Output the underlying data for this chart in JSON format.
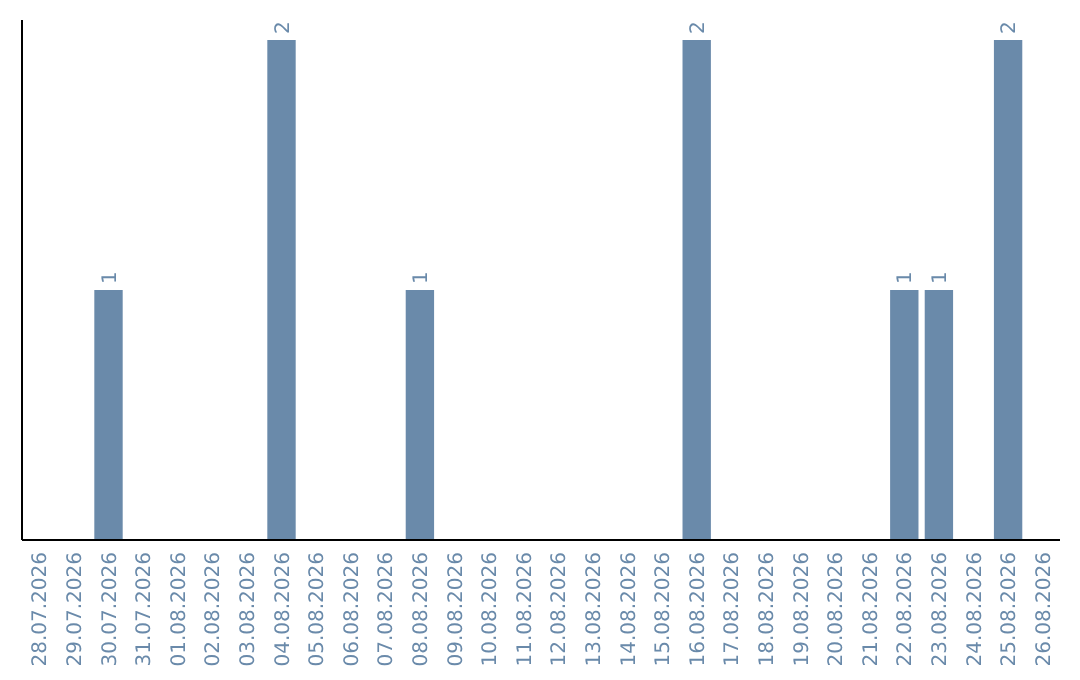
{
  "chart_data": {
    "type": "bar",
    "categories": [
      "28.07.2026",
      "29.07.2026",
      "30.07.2026",
      "31.07.2026",
      "01.08.2026",
      "02.08.2026",
      "03.08.2026",
      "04.08.2026",
      "05.08.2026",
      "06.08.2026",
      "07.08.2026",
      "08.08.2026",
      "09.08.2026",
      "10.08.2026",
      "11.08.2026",
      "12.08.2026",
      "13.08.2026",
      "14.08.2026",
      "15.08.2026",
      "16.08.2026",
      "17.08.2026",
      "18.08.2026",
      "19.08.2026",
      "20.08.2026",
      "21.08.2026",
      "22.08.2026",
      "23.08.2026",
      "24.08.2026",
      "25.08.2026",
      "26.08.2026"
    ],
    "values": [
      0,
      0,
      1,
      0,
      0,
      0,
      0,
      2,
      0,
      0,
      0,
      1,
      0,
      0,
      0,
      0,
      0,
      0,
      0,
      2,
      0,
      0,
      0,
      0,
      0,
      1,
      1,
      0,
      2,
      0
    ],
    "value_labels": [
      null,
      null,
      "1",
      null,
      null,
      null,
      null,
      "2",
      null,
      null,
      null,
      "1",
      null,
      null,
      null,
      null,
      null,
      null,
      null,
      "2",
      null,
      null,
      null,
      null,
      null,
      "1",
      "1",
      null,
      "2",
      null
    ],
    "color": "#6a8aaa"
  }
}
